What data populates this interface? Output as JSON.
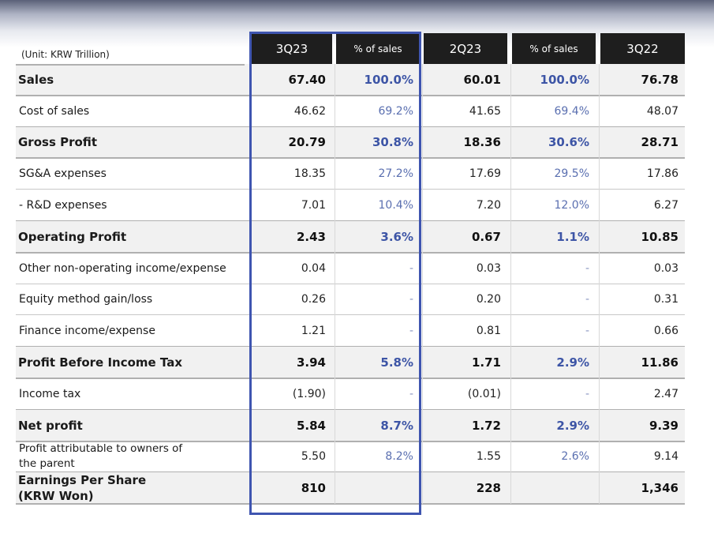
{
  "unit_label": "(Unit: KRW Trillion)",
  "columns": [
    {
      "label": "3Q23",
      "kind": "period"
    },
    {
      "label": "% of sales",
      "kind": "pct"
    },
    {
      "label": "2Q23",
      "kind": "period"
    },
    {
      "label": "% of sales",
      "kind": "pct"
    },
    {
      "label": "3Q22",
      "kind": "period"
    }
  ],
  "rows": [
    {
      "label": "Sales",
      "bold": true,
      "values": [
        "67.40",
        "100.0%",
        "60.01",
        "100.0%",
        "76.78"
      ]
    },
    {
      "label": "Cost of sales",
      "bold": false,
      "values": [
        "46.62",
        "69.2%",
        "41.65",
        "69.4%",
        "48.07"
      ]
    },
    {
      "label": "Gross Profit",
      "bold": true,
      "values": [
        "20.79",
        "30.8%",
        "18.36",
        "30.6%",
        "28.71"
      ]
    },
    {
      "label": "SG&A expenses",
      "bold": false,
      "values": [
        "18.35",
        "27.2%",
        "17.69",
        "29.5%",
        "17.86"
      ]
    },
    {
      "label": " - R&D expenses",
      "bold": false,
      "values": [
        "7.01",
        "10.4%",
        "7.20",
        "12.0%",
        "6.27"
      ]
    },
    {
      "label": "Operating Profit",
      "bold": true,
      "values": [
        "2.43",
        "3.6%",
        "0.67",
        "1.1%",
        "10.85"
      ]
    },
    {
      "label": "Other non-operating income/expense",
      "bold": false,
      "values": [
        "0.04",
        "-",
        "0.03",
        "-",
        "0.03"
      ]
    },
    {
      "label": "Equity method gain/loss",
      "bold": false,
      "values": [
        "0.26",
        "-",
        "0.20",
        "-",
        "0.31"
      ]
    },
    {
      "label": "Finance income/expense",
      "bold": false,
      "values": [
        "1.21",
        "-",
        "0.81",
        "-",
        "0.66"
      ]
    },
    {
      "label": "Profit Before Income Tax",
      "bold": true,
      "values": [
        "3.94",
        "5.8%",
        "1.71",
        "2.9%",
        "11.86"
      ]
    },
    {
      "label": "Income tax",
      "bold": false,
      "values": [
        "(1.90)",
        "-",
        "(0.01)",
        "-",
        "2.47"
      ]
    },
    {
      "label": "Net profit",
      "bold": true,
      "values": [
        "5.84",
        "8.7%",
        "1.72",
        "2.9%",
        "9.39"
      ]
    },
    {
      "label": "Profit attributable to owners of the parent",
      "bold": false,
      "multiline": true,
      "values": [
        "5.50",
        "8.2%",
        "1.55",
        "2.6%",
        "9.14"
      ]
    },
    {
      "label": "Earnings Per Share (KRW Won)",
      "bold": true,
      "multiline": true,
      "values": [
        "810",
        "",
        "228",
        "",
        "1,346"
      ]
    }
  ],
  "colors": {
    "header_bg": "#1e1e1e",
    "pct_text": "#5a6fb0",
    "highlight_border": "#3f55b0"
  }
}
